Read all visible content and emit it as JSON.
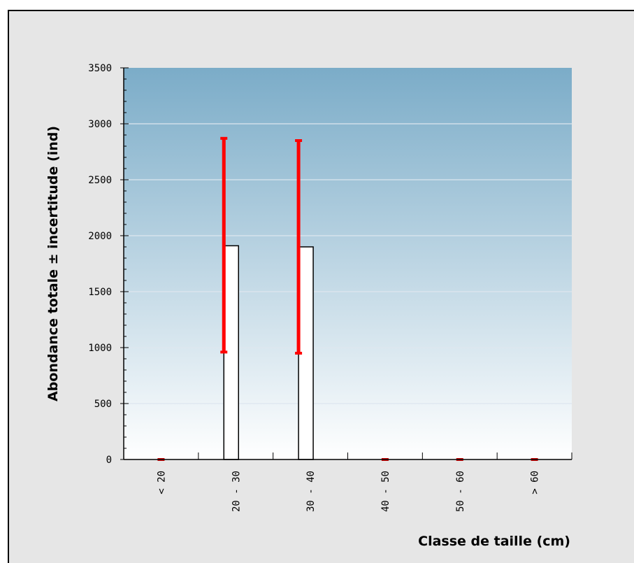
{
  "chart_data": {
    "type": "bar",
    "title": "",
    "xlabel": "Classe de taille (cm)",
    "ylabel": "Abondance totale ± incertitude (ind)",
    "categories": [
      "< 20",
      "20 - 30",
      "30 - 40",
      "40 - 50",
      "50 - 60",
      "> 60"
    ],
    "values": [
      0,
      1910,
      1900,
      0,
      0,
      0
    ],
    "error_low": [
      0,
      960,
      950,
      0,
      0,
      0
    ],
    "error_high": [
      0,
      2870,
      2850,
      0,
      0,
      0
    ],
    "ylim": [
      0,
      3500
    ],
    "yticks": [
      0,
      500,
      1000,
      1500,
      2000,
      2500,
      3000,
      3500
    ],
    "grid": true,
    "colors": {
      "bar_fill": "#ffffff",
      "bar_stroke": "#000000",
      "error_bar": "#ff0000",
      "plot_bg_top": "#7bacc8",
      "plot_bg_bottom": "#ffffff",
      "panel_bg": "#e6e6e6",
      "gridline": "#dde6ee"
    }
  }
}
